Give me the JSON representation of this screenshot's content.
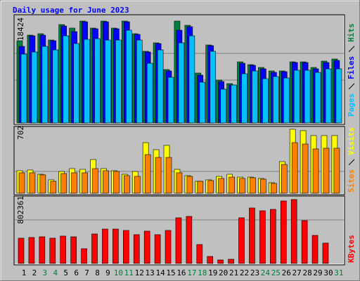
{
  "chart_data": [
    {
      "type": "bar",
      "title": "Daily usage for June 2023",
      "ylim": [
        0,
        18424
      ],
      "yticks": [
        18424
      ],
      "series": [
        {
          "name": "Hits",
          "color": "#008040",
          "values": [
            14866,
            15883,
            16137,
            14993,
            17788,
            17153,
            18424,
            17153,
            18424,
            17153,
            18424,
            16137,
            12960,
            14485,
            9657,
            18424,
            17661,
            9021,
            14104,
            7751,
            7115,
            11054,
            10546,
            10038,
            9402,
            9402,
            11054,
            11054,
            10038,
            11181,
            11562
          ]
        },
        {
          "name": "Files",
          "color": "#0000ff",
          "values": [
            13850,
            15755,
            15883,
            14866,
            17534,
            16518,
            18297,
            17026,
            18297,
            17026,
            18297,
            16010,
            12833,
            14358,
            9402,
            16772,
            17407,
            8640,
            13977,
            7497,
            6861,
            10800,
            10419,
            9784,
            9148,
            9275,
            10927,
            10927,
            9784,
            10927,
            11308
          ]
        },
        {
          "name": "Pages",
          "color": "#00c0ff",
          "values": [
            12452,
            12833,
            13850,
            13214,
            15755,
            14358,
            15120,
            15247,
            14993,
            14993,
            16772,
            14993,
            10800,
            13214,
            8259,
            14485,
            15755,
            7369,
            12960,
            6099,
            6861,
            8894,
            9402,
            8005,
            8386,
            8132,
            9530,
            9530,
            9148,
            9784,
            9784
          ]
        }
      ]
    },
    {
      "type": "bar",
      "ylim": [
        0,
        702
      ],
      "yticks": [
        702
      ],
      "series": [
        {
          "name": "Visits",
          "color": "#ffff00",
          "values": [
            247,
            255,
            208,
            147,
            239,
            270,
            262,
            370,
            270,
            247,
            208,
            239,
            555,
            478,
            525,
            262,
            193,
            131,
            147,
            185,
            208,
            177,
            177,
            162,
            116,
            347,
            702,
            687,
            633,
            633,
            633
          ]
        },
        {
          "name": "Sites",
          "color": "#ff8000",
          "values": [
            224,
            224,
            201,
            131,
            216,
            224,
            224,
            270,
            247,
            239,
            193,
            185,
            424,
            393,
            393,
            224,
            185,
            131,
            139,
            162,
            177,
            162,
            170,
            154,
            108,
            316,
            555,
            540,
            486,
            494,
            494
          ]
        }
      ]
    },
    {
      "type": "bar",
      "ylim": [
        0,
        802361
      ],
      "yticks": [
        802361
      ],
      "categories": [
        "1",
        "2",
        "3",
        "4",
        "5",
        "6",
        "7",
        "8",
        "9",
        "10",
        "11",
        "12",
        "13",
        "14",
        "15",
        "16",
        "17",
        "18",
        "19",
        "20",
        "21",
        "22",
        "23",
        "24",
        "25",
        "26",
        "27",
        "28",
        "29",
        "30",
        "31"
      ],
      "label_colors": [
        "#000000",
        "#000000",
        "#008040",
        "#008040",
        "#000000",
        "#000000",
        "#000000",
        "#000000",
        "#000000",
        "#008040",
        "#008040",
        "#000000",
        "#000000",
        "#000000",
        "#000000",
        "#000000",
        "#008040",
        "#008040",
        "#000000",
        "#000000",
        "#000000",
        "#000000",
        "#000000",
        "#008040",
        "#008040",
        "#000000",
        "#000000",
        "#000000",
        "#000000",
        "#000000",
        "#008040"
      ],
      "series": [
        {
          "name": "KBytes",
          "color": "#ff0000",
          "values": [
            317412,
            326229,
            335046,
            317412,
            343863,
            335046,
            185157,
            370314,
            432033,
            432033,
            414399,
            361497,
            405582,
            361497,
            414399,
            573105,
            590739,
            238059,
            88170,
            44085,
            52902,
            573105,
            696543,
            661275,
            678909,
            784713,
            802361,
            537837,
            352680,
            255693,
            null
          ]
        }
      ]
    }
  ]
}
